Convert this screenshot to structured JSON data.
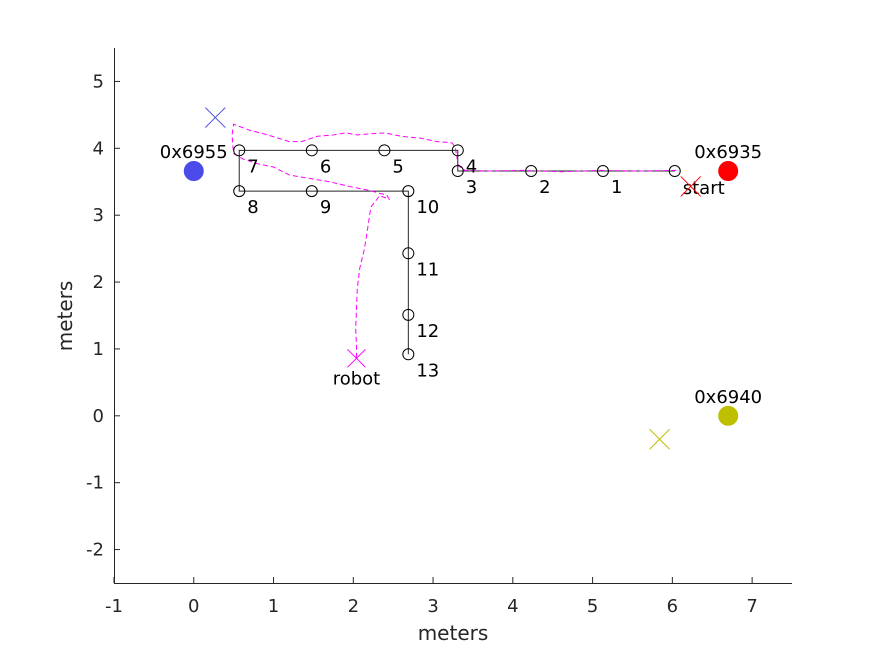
{
  "chart_data": {
    "type": "scatter",
    "title": "",
    "xlabel": "meters",
    "ylabel": "meters",
    "xlim": [
      -1,
      7.5
    ],
    "ylim": [
      -2.5,
      5.5
    ],
    "xticks": [
      -1,
      0,
      1,
      2,
      3,
      4,
      5,
      6,
      7
    ],
    "yticks": [
      -2,
      -1,
      0,
      1,
      2,
      3,
      4,
      5
    ],
    "grid": false,
    "colors": {
      "path": "#262626",
      "trajectory": "#ff00ff",
      "anchor_6955": "#4b4bea",
      "anchor_6935": "#ff0000",
      "anchor_6940": "#bfbf00"
    },
    "waypoints": [
      {
        "label": "start",
        "x": 6.03,
        "y": 3.66
      },
      {
        "label": "1",
        "x": 5.13,
        "y": 3.66
      },
      {
        "label": "2",
        "x": 4.23,
        "y": 3.66
      },
      {
        "label": "3",
        "x": 3.31,
        "y": 3.66
      },
      {
        "label": "4",
        "x": 3.31,
        "y": 3.97
      },
      {
        "label": "5",
        "x": 2.39,
        "y": 3.97
      },
      {
        "label": "6",
        "x": 1.48,
        "y": 3.97
      },
      {
        "label": "7",
        "x": 0.57,
        "y": 3.97
      },
      {
        "label": "8",
        "x": 0.57,
        "y": 3.36
      },
      {
        "label": "9",
        "x": 1.48,
        "y": 3.36
      },
      {
        "label": "10",
        "x": 2.69,
        "y": 3.36
      },
      {
        "label": "11",
        "x": 2.69,
        "y": 2.43
      },
      {
        "label": "12",
        "x": 2.69,
        "y": 1.51
      },
      {
        "label": "13",
        "x": 2.69,
        "y": 0.92
      }
    ],
    "anchors": [
      {
        "label": "0x6955",
        "x": 0.0,
        "y": 3.66,
        "estimate": {
          "x": 0.27,
          "y": 4.46
        }
      },
      {
        "label": "0x6935",
        "x": 6.7,
        "y": 3.66,
        "estimate": {
          "x": 6.23,
          "y": 3.43
        }
      },
      {
        "label": "0x6940",
        "x": 6.7,
        "y": 0.0,
        "estimate": {
          "x": 5.84,
          "y": -0.35
        }
      }
    ],
    "robot": {
      "label": "robot",
      "x": 2.04,
      "y": 0.86
    },
    "trajectory": [
      [
        6.05,
        3.67
      ],
      [
        5.6,
        3.66
      ],
      [
        5.1,
        3.67
      ],
      [
        4.6,
        3.65
      ],
      [
        4.1,
        3.67
      ],
      [
        3.7,
        3.66
      ],
      [
        3.4,
        3.67
      ],
      [
        3.32,
        3.74
      ],
      [
        3.3,
        3.86
      ],
      [
        3.28,
        4.0
      ],
      [
        3.24,
        4.08
      ],
      [
        3.16,
        4.09
      ],
      [
        3.05,
        4.1
      ],
      [
        2.85,
        4.15
      ],
      [
        2.6,
        4.18
      ],
      [
        2.4,
        4.23
      ],
      [
        2.25,
        4.22
      ],
      [
        2.05,
        4.2
      ],
      [
        1.9,
        4.23
      ],
      [
        1.75,
        4.2
      ],
      [
        1.55,
        4.18
      ],
      [
        1.35,
        4.1
      ],
      [
        1.2,
        4.1
      ],
      [
        0.9,
        4.21
      ],
      [
        0.7,
        4.27
      ],
      [
        0.5,
        4.36
      ],
      [
        0.48,
        4.2
      ],
      [
        0.49,
        4.04
      ],
      [
        0.5,
        3.92
      ],
      [
        0.62,
        3.84
      ],
      [
        0.8,
        3.77
      ],
      [
        1.0,
        3.72
      ],
      [
        1.2,
        3.6
      ],
      [
        1.45,
        3.55
      ],
      [
        1.7,
        3.5
      ],
      [
        1.95,
        3.43
      ],
      [
        2.2,
        3.37
      ],
      [
        2.42,
        3.3
      ],
      [
        2.45,
        3.24
      ],
      [
        2.33,
        3.29
      ],
      [
        2.22,
        3.12
      ],
      [
        2.18,
        2.8
      ],
      [
        2.14,
        2.5
      ],
      [
        2.08,
        2.2
      ],
      [
        2.05,
        1.9
      ],
      [
        2.04,
        1.6
      ],
      [
        2.03,
        1.3
      ],
      [
        2.04,
        1.05
      ],
      [
        2.04,
        0.86
      ]
    ]
  }
}
